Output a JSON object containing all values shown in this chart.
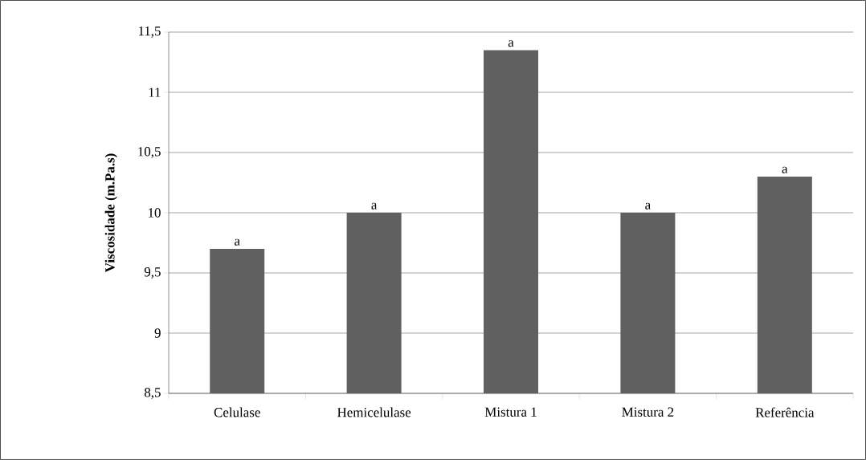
{
  "chart_data": {
    "type": "bar",
    "ylabel": "Viscosidade (m.Pa.s)",
    "categories": [
      "Celulase",
      "Hemicelulase",
      "Mistura 1",
      "Mistura 2",
      "Referência"
    ],
    "values": [
      9.7,
      10.0,
      11.35,
      10.0,
      10.3
    ],
    "color": "#606060",
    "ylim": [
      8.5,
      11.5
    ],
    "yticks": [
      {
        "value": 8.5,
        "label": "8,5"
      },
      9,
      {
        "value": 9.5,
        "label": "9,5"
      },
      10,
      {
        "value": 10.5,
        "label": "10,5"
      },
      11,
      {
        "value": 11.5,
        "label": "11,5"
      }
    ],
    "grid": "y",
    "annotations": [
      {
        "text": "a",
        "x": "Celulase",
        "y": 9.7
      },
      {
        "text": "a",
        "x": "Hemicelulase",
        "y": 10.0
      },
      {
        "text": "a",
        "x": "Mistura 1",
        "y": 11.35
      },
      {
        "text": "a",
        "x": "Mistura 2",
        "y": 10.0
      },
      {
        "text": "a",
        "x": "Referência",
        "y": 10.3
      }
    ]
  }
}
